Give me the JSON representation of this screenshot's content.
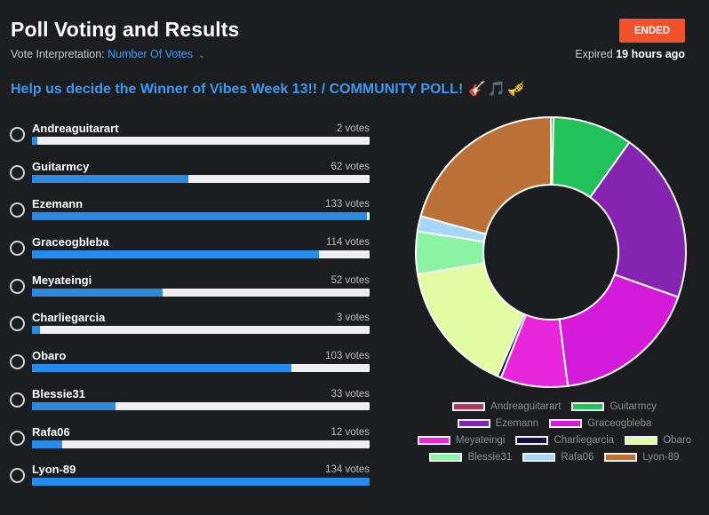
{
  "header": {
    "title": "Poll Voting and Results",
    "interpretation_label": "Vote Interpretation:",
    "interpretation_value": "Number Of Votes",
    "status": "ENDED",
    "expired_prefix": "Expired",
    "expired_time": "19 hours ago"
  },
  "poll": {
    "question": "Help us decide the Winner of Vibes Week 13!! / COMMUNITY POLL!",
    "emojis": "🎸🎵🎺"
  },
  "chart_data": {
    "type": "pie",
    "max_votes": 134,
    "options": [
      {
        "name": "Andreaguitarart",
        "votes": 2,
        "votes_label": "2 votes",
        "color": "#b03a5a"
      },
      {
        "name": "Guitarmcy",
        "votes": 62,
        "votes_label": "62 votes",
        "color": "#22c15a"
      },
      {
        "name": "Ezemann",
        "votes": 133,
        "votes_label": "133 votes",
        "color": "#8424b0"
      },
      {
        "name": "Graceogbleba",
        "votes": 114,
        "votes_label": "114 votes",
        "color": "#d21ad8"
      },
      {
        "name": "Meyateingi",
        "votes": 52,
        "votes_label": "52 votes",
        "color": "#ea26da"
      },
      {
        "name": "Charliegarcia",
        "votes": 3,
        "votes_label": "3 votes",
        "color": "#1a1040"
      },
      {
        "name": "Obaro",
        "votes": 103,
        "votes_label": "103 votes",
        "color": "#e2fca4"
      },
      {
        "name": "Blessie31",
        "votes": 33,
        "votes_label": "33 votes",
        "color": "#8af4a4"
      },
      {
        "name": "Rafa06",
        "votes": 12,
        "votes_label": "12 votes",
        "color": "#a6d8f6"
      },
      {
        "name": "Lyon-89",
        "votes": 134,
        "votes_label": "134 votes",
        "color": "#bb7035"
      }
    ]
  }
}
